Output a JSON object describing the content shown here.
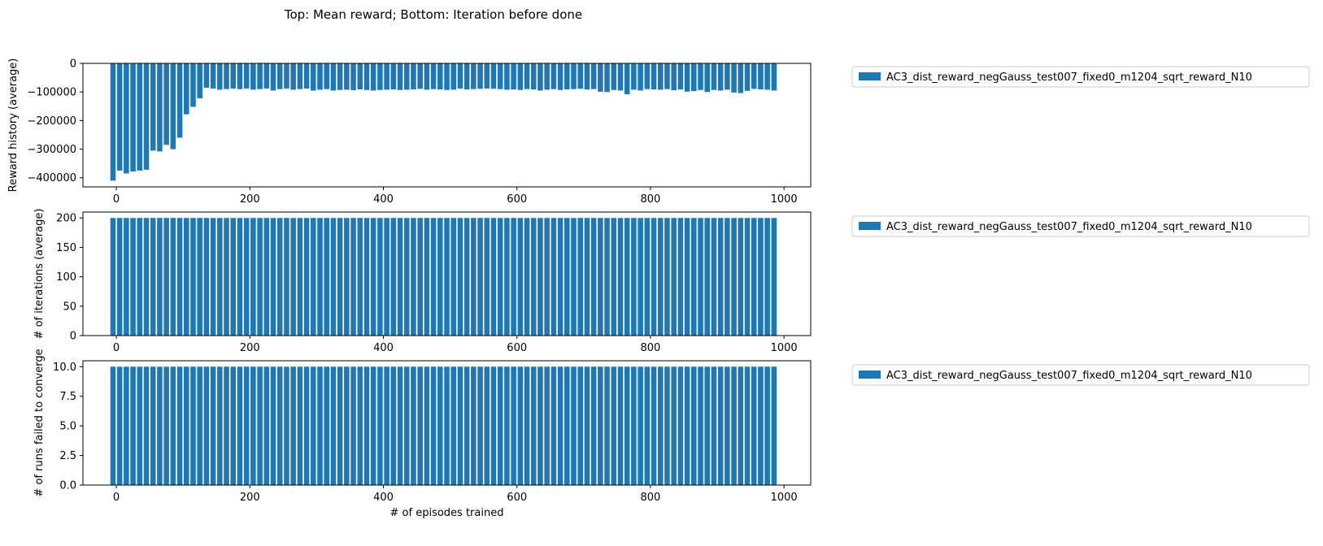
{
  "suptitle": "Top: Mean reward; Bottom: Iteration before done",
  "bar_color": "#1f77b4",
  "chart_data": [
    {
      "type": "bar",
      "title": "",
      "xlabel": "",
      "ylabel": "Reward history (average)",
      "xlim": [
        -50,
        1040
      ],
      "ylim": [
        -432000,
        0
      ],
      "xticks": [
        0,
        200,
        400,
        600,
        800,
        1000
      ],
      "yticks": [
        0,
        -100000,
        -200000,
        -300000,
        -400000
      ],
      "legend": {
        "location": "outside-right",
        "entries": [
          "AC3_dist_reward_negGauss_test007_fixed0_m1204_sqrt_reward_N10"
        ]
      },
      "series": [
        {
          "name": "AC3_dist_reward_negGauss_test007_fixed0_m1204_sqrt_reward_N10",
          "x": [
            -5,
            5,
            15,
            25,
            35,
            45,
            55,
            65,
            75,
            85,
            95,
            105,
            115,
            125,
            135,
            145,
            155,
            165,
            175,
            185,
            195,
            205,
            215,
            225,
            235,
            245,
            255,
            265,
            275,
            285,
            295,
            305,
            315,
            325,
            335,
            345,
            355,
            365,
            375,
            385,
            395,
            405,
            415,
            425,
            435,
            445,
            455,
            465,
            475,
            485,
            495,
            505,
            515,
            525,
            535,
            545,
            555,
            565,
            575,
            585,
            595,
            605,
            615,
            625,
            635,
            645,
            655,
            665,
            675,
            685,
            695,
            705,
            715,
            725,
            735,
            745,
            755,
            765,
            775,
            785,
            795,
            805,
            815,
            825,
            835,
            845,
            855,
            865,
            875,
            885,
            895,
            905,
            915,
            925,
            935,
            945,
            955,
            965,
            975,
            985
          ],
          "values": [
            -410000,
            -375000,
            -385000,
            -378000,
            -375000,
            -372000,
            -305000,
            -308000,
            -285000,
            -300000,
            -260000,
            -178000,
            -152000,
            -122000,
            -85000,
            -88000,
            -92000,
            -90000,
            -88000,
            -90000,
            -88000,
            -92000,
            -90000,
            -88000,
            -95000,
            -90000,
            -88000,
            -92000,
            -90000,
            -88000,
            -95000,
            -92000,
            -90000,
            -95000,
            -93000,
            -92000,
            -94000,
            -91000,
            -93000,
            -95000,
            -93000,
            -92000,
            -91000,
            -93000,
            -92000,
            -91000,
            -89000,
            -92000,
            -90000,
            -91000,
            -93000,
            -92000,
            -88000,
            -91000,
            -90000,
            -89000,
            -88000,
            -89000,
            -90000,
            -92000,
            -91000,
            -93000,
            -90000,
            -91000,
            -95000,
            -92000,
            -90000,
            -93000,
            -91000,
            -90000,
            -89000,
            -91000,
            -90000,
            -99000,
            -100000,
            -93000,
            -95000,
            -108000,
            -92000,
            -95000,
            -90000,
            -91000,
            -92000,
            -90000,
            -94000,
            -91000,
            -99000,
            -97000,
            -93000,
            -100000,
            -93000,
            -95000,
            -92000,
            -102000,
            -104000,
            -96000,
            -89000,
            -91000,
            -92000,
            -95000
          ]
        }
      ]
    },
    {
      "type": "bar",
      "title": "",
      "xlabel": "",
      "ylabel": "# of iterations (average)",
      "xlim": [
        -50,
        1040
      ],
      "ylim": [
        0,
        210
      ],
      "xticks": [
        0,
        200,
        400,
        600,
        800,
        1000
      ],
      "yticks": [
        0,
        50,
        100,
        150,
        200
      ],
      "legend": {
        "location": "outside-right",
        "entries": [
          "AC3_dist_reward_negGauss_test007_fixed0_m1204_sqrt_reward_N10"
        ]
      },
      "series": [
        {
          "name": "AC3_dist_reward_negGauss_test007_fixed0_m1204_sqrt_reward_N10",
          "x": [
            -5,
            5,
            15,
            25,
            35,
            45,
            55,
            65,
            75,
            85,
            95,
            105,
            115,
            125,
            135,
            145,
            155,
            165,
            175,
            185,
            195,
            205,
            215,
            225,
            235,
            245,
            255,
            265,
            275,
            285,
            295,
            305,
            315,
            325,
            335,
            345,
            355,
            365,
            375,
            385,
            395,
            405,
            415,
            425,
            435,
            445,
            455,
            465,
            475,
            485,
            495,
            505,
            515,
            525,
            535,
            545,
            555,
            565,
            575,
            585,
            595,
            605,
            615,
            625,
            635,
            645,
            655,
            665,
            675,
            685,
            695,
            705,
            715,
            725,
            735,
            745,
            755,
            765,
            775,
            785,
            795,
            805,
            815,
            825,
            835,
            845,
            855,
            865,
            875,
            885,
            895,
            905,
            915,
            925,
            935,
            945,
            955,
            965,
            975,
            985
          ],
          "values": [
            200,
            200,
            200,
            200,
            200,
            200,
            200,
            200,
            200,
            200,
            200,
            200,
            200,
            200,
            200,
            200,
            200,
            200,
            200,
            200,
            200,
            200,
            200,
            200,
            200,
            200,
            200,
            200,
            200,
            200,
            200,
            200,
            200,
            200,
            200,
            200,
            200,
            200,
            200,
            200,
            200,
            200,
            200,
            200,
            200,
            200,
            200,
            200,
            200,
            200,
            200,
            200,
            200,
            200,
            200,
            200,
            200,
            200,
            200,
            200,
            200,
            200,
            200,
            200,
            200,
            200,
            200,
            200,
            200,
            200,
            200,
            200,
            200,
            200,
            200,
            200,
            200,
            200,
            200,
            200,
            200,
            200,
            200,
            200,
            200,
            200,
            200,
            200,
            200,
            200,
            200,
            200,
            200,
            200,
            200,
            200,
            200,
            200,
            200,
            200
          ]
        }
      ]
    },
    {
      "type": "bar",
      "title": "",
      "xlabel": "# of episodes trained",
      "ylabel": "# of runs failed to converge",
      "xlim": [
        -50,
        1040
      ],
      "ylim": [
        0,
        10.5
      ],
      "xticks": [
        0,
        200,
        400,
        600,
        800,
        1000
      ],
      "yticks": [
        0.0,
        2.5,
        5.0,
        7.5,
        10.0
      ],
      "legend": {
        "location": "outside-right",
        "entries": [
          "AC3_dist_reward_negGauss_test007_fixed0_m1204_sqrt_reward_N10"
        ]
      },
      "series": [
        {
          "name": "AC3_dist_reward_negGauss_test007_fixed0_m1204_sqrt_reward_N10",
          "x": [
            -5,
            5,
            15,
            25,
            35,
            45,
            55,
            65,
            75,
            85,
            95,
            105,
            115,
            125,
            135,
            145,
            155,
            165,
            175,
            185,
            195,
            205,
            215,
            225,
            235,
            245,
            255,
            265,
            275,
            285,
            295,
            305,
            315,
            325,
            335,
            345,
            355,
            365,
            375,
            385,
            395,
            405,
            415,
            425,
            435,
            445,
            455,
            465,
            475,
            485,
            495,
            505,
            515,
            525,
            535,
            545,
            555,
            565,
            575,
            585,
            595,
            605,
            615,
            625,
            635,
            645,
            655,
            665,
            675,
            685,
            695,
            705,
            715,
            725,
            735,
            745,
            755,
            765,
            775,
            785,
            795,
            805,
            815,
            825,
            835,
            845,
            855,
            865,
            875,
            885,
            895,
            905,
            915,
            925,
            935,
            945,
            955,
            965,
            975,
            985
          ],
          "values": [
            10,
            10,
            10,
            10,
            10,
            10,
            10,
            10,
            10,
            10,
            10,
            10,
            10,
            10,
            10,
            10,
            10,
            10,
            10,
            10,
            10,
            10,
            10,
            10,
            10,
            10,
            10,
            10,
            10,
            10,
            10,
            10,
            10,
            10,
            10,
            10,
            10,
            10,
            10,
            10,
            10,
            10,
            10,
            10,
            10,
            10,
            10,
            10,
            10,
            10,
            10,
            10,
            10,
            10,
            10,
            10,
            10,
            10,
            10,
            10,
            10,
            10,
            10,
            10,
            10,
            10,
            10,
            10,
            10,
            10,
            10,
            10,
            10,
            10,
            10,
            10,
            10,
            10,
            10,
            10,
            10,
            10,
            10,
            10,
            10,
            10,
            10,
            10,
            10,
            10,
            10,
            10,
            10,
            10,
            10,
            10,
            10,
            10,
            10,
            10
          ]
        }
      ]
    }
  ]
}
